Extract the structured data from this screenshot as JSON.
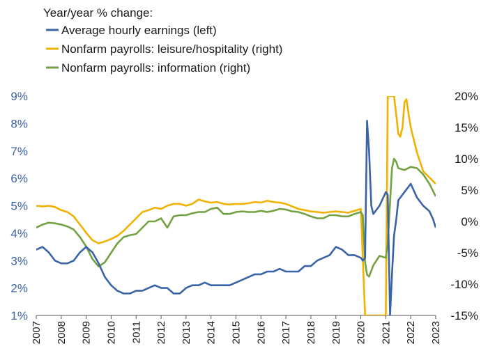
{
  "chart_data": {
    "type": "line",
    "title": "Year/year % change:",
    "legend_position": "top-left",
    "grid": false,
    "x_ticks": [
      "2007",
      "2008",
      "2009",
      "2010",
      "2011",
      "2012",
      "2013",
      "2014",
      "2015",
      "2016",
      "2017",
      "2018",
      "2019",
      "2020",
      "2021",
      "2022",
      "2023"
    ],
    "y_left": {
      "min": 1,
      "max": 9,
      "ticks": [
        "1%",
        "2%",
        "3%",
        "4%",
        "5%",
        "6%",
        "7%",
        "8%",
        "9%"
      ]
    },
    "y_right": {
      "min": -15,
      "max": 20,
      "ticks": [
        "-15%",
        "-10%",
        "-5%",
        "0%",
        "5%",
        "10%",
        "15%",
        "20%"
      ]
    },
    "series": [
      {
        "name": "Average hourly earnings (left)",
        "axis": "left",
        "color": "#3a63a8",
        "x": [
          2007.0,
          2007.25,
          2007.5,
          2007.75,
          2008.0,
          2008.25,
          2008.5,
          2008.75,
          2009.0,
          2009.25,
          2009.5,
          2009.75,
          2010.0,
          2010.25,
          2010.5,
          2010.75,
          2011.0,
          2011.25,
          2011.5,
          2011.75,
          2012.0,
          2012.25,
          2012.5,
          2012.75,
          2013.0,
          2013.25,
          2013.5,
          2013.75,
          2014.0,
          2014.25,
          2014.5,
          2014.75,
          2015.0,
          2015.25,
          2015.5,
          2015.75,
          2016.0,
          2016.25,
          2016.5,
          2016.75,
          2017.0,
          2017.25,
          2017.5,
          2017.75,
          2018.0,
          2018.25,
          2018.5,
          2018.75,
          2019.0,
          2019.25,
          2019.5,
          2019.75,
          2020.0,
          2020.08,
          2020.17,
          2020.25,
          2020.33,
          2020.42,
          2020.5,
          2020.75,
          2021.0,
          2021.08,
          2021.17,
          2021.25,
          2021.33,
          2021.42,
          2021.5,
          2021.75,
          2022.0,
          2022.25,
          2022.5,
          2022.75,
          2022.9,
          2023.0
        ],
        "values": [
          3.4,
          3.5,
          3.3,
          3.0,
          2.9,
          2.9,
          3.0,
          3.3,
          3.5,
          3.3,
          2.9,
          2.4,
          2.1,
          1.9,
          1.8,
          1.8,
          1.9,
          1.9,
          2.0,
          2.1,
          2.0,
          2.0,
          1.8,
          1.8,
          2.0,
          2.1,
          2.1,
          2.2,
          2.1,
          2.1,
          2.1,
          2.1,
          2.2,
          2.3,
          2.4,
          2.5,
          2.5,
          2.6,
          2.6,
          2.7,
          2.6,
          2.6,
          2.6,
          2.8,
          2.8,
          3.0,
          3.1,
          3.2,
          3.5,
          3.4,
          3.2,
          3.2,
          3.1,
          3.0,
          3.1,
          8.1,
          7.0,
          5.0,
          4.7,
          5.0,
          5.5,
          5.4,
          1.0,
          2.5,
          3.9,
          4.5,
          5.2,
          5.5,
          5.8,
          5.3,
          5.0,
          4.8,
          4.5,
          4.2
        ]
      },
      {
        "name": "Nonfarm payrolls: leisure/hospitality (right)",
        "axis": "right",
        "color": "#f0b100",
        "x": [
          2007.0,
          2007.25,
          2007.5,
          2007.75,
          2008.0,
          2008.25,
          2008.5,
          2008.75,
          2009.0,
          2009.25,
          2009.5,
          2009.75,
          2010.0,
          2010.25,
          2010.5,
          2010.75,
          2011.0,
          2011.25,
          2011.5,
          2011.75,
          2012.0,
          2012.25,
          2012.5,
          2012.75,
          2013.0,
          2013.25,
          2013.5,
          2013.75,
          2014.0,
          2014.25,
          2014.5,
          2014.75,
          2015.0,
          2015.25,
          2015.5,
          2015.75,
          2016.0,
          2016.25,
          2016.5,
          2016.75,
          2017.0,
          2017.25,
          2017.5,
          2017.75,
          2018.0,
          2018.25,
          2018.5,
          2018.75,
          2019.0,
          2019.25,
          2019.5,
          2019.75,
          2020.0,
          2020.17,
          2020.25,
          2020.33,
          2020.5,
          2020.75,
          2021.0,
          2021.08,
          2021.17,
          2021.33,
          2021.42,
          2021.5,
          2021.58,
          2021.67,
          2021.75,
          2021.83,
          2021.92,
          2022.0,
          2022.25,
          2022.5,
          2022.75,
          2023.0
        ],
        "values": [
          2.5,
          2.4,
          2.5,
          2.3,
          1.8,
          1.5,
          0.8,
          -0.5,
          -1.8,
          -3.0,
          -3.5,
          -3.2,
          -2.8,
          -2.3,
          -1.5,
          -0.5,
          0.5,
          1.5,
          1.8,
          2.2,
          2.0,
          2.5,
          2.8,
          2.8,
          2.5,
          2.8,
          3.5,
          3.2,
          3.0,
          3.1,
          2.8,
          2.7,
          2.8,
          2.8,
          2.9,
          3.1,
          3.0,
          3.3,
          3.1,
          3.0,
          2.8,
          2.4,
          2.0,
          1.8,
          1.6,
          1.5,
          1.4,
          1.5,
          1.6,
          1.5,
          1.4,
          1.7,
          2.0,
          -15.0,
          -15.0,
          -15.0,
          -15.0,
          -15.0,
          -15.0,
          20.0,
          20.0,
          20.0,
          17.0,
          14.0,
          13.5,
          15.0,
          19.0,
          19.5,
          17.0,
          15.0,
          11.0,
          8.0,
          7.0,
          6.0
        ]
      },
      {
        "name": "Nonfarm payrolls: information (right)",
        "axis": "right",
        "color": "#72a241",
        "x": [
          2007.0,
          2007.25,
          2007.5,
          2007.75,
          2008.0,
          2008.25,
          2008.5,
          2008.75,
          2009.0,
          2009.25,
          2009.5,
          2009.75,
          2010.0,
          2010.25,
          2010.5,
          2010.75,
          2011.0,
          2011.25,
          2011.5,
          2011.75,
          2012.0,
          2012.25,
          2012.5,
          2012.75,
          2013.0,
          2013.25,
          2013.5,
          2013.75,
          2014.0,
          2014.25,
          2014.5,
          2014.75,
          2015.0,
          2015.25,
          2015.5,
          2015.75,
          2016.0,
          2016.25,
          2016.5,
          2016.75,
          2017.0,
          2017.25,
          2017.5,
          2017.75,
          2018.0,
          2018.25,
          2018.5,
          2018.75,
          2019.0,
          2019.25,
          2019.5,
          2019.75,
          2020.0,
          2020.08,
          2020.17,
          2020.25,
          2020.33,
          2020.5,
          2020.75,
          2021.0,
          2021.08,
          2021.17,
          2021.25,
          2021.33,
          2021.42,
          2021.5,
          2021.75,
          2022.0,
          2022.25,
          2022.5,
          2022.75,
          2023.0
        ],
        "values": [
          -1.0,
          -0.5,
          -0.2,
          -0.3,
          -0.5,
          -0.8,
          -1.3,
          -2.5,
          -4.0,
          -6.0,
          -7.2,
          -6.5,
          -5.0,
          -3.5,
          -2.5,
          -2.2,
          -2.0,
          -1.0,
          0.0,
          0.0,
          0.5,
          -1.0,
          0.8,
          1.0,
          1.0,
          1.3,
          1.5,
          1.5,
          2.0,
          2.2,
          1.2,
          1.2,
          1.5,
          1.6,
          1.5,
          1.5,
          1.7,
          1.5,
          1.7,
          2.0,
          1.9,
          1.6,
          1.5,
          1.2,
          0.8,
          0.5,
          0.5,
          1.0,
          1.0,
          0.8,
          0.8,
          1.2,
          1.5,
          1.0,
          -6.5,
          -8.5,
          -8.8,
          -7.0,
          -5.5,
          -5.8,
          -3.5,
          3.0,
          8.5,
          10.0,
          9.5,
          8.5,
          8.2,
          8.7,
          8.5,
          7.5,
          6.0,
          4.0
        ]
      }
    ]
  }
}
